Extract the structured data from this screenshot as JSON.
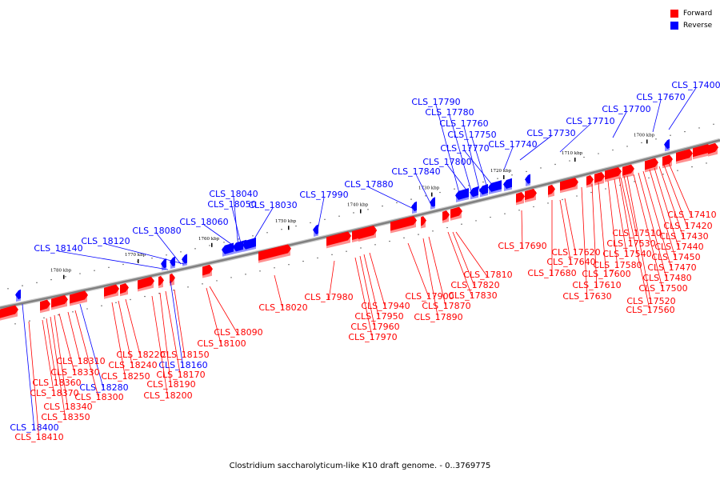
{
  "caption": "Clostridium saccharolyticum-like K10 draft genome. - 0..3769775",
  "legend": [
    {
      "label": "Forward",
      "color": "#ff0000"
    },
    {
      "label": "Reverse",
      "color": "#0000ff"
    }
  ],
  "colors": {
    "forward": "#ff0000",
    "reverse": "#0000ff",
    "backbone": "#808080"
  },
  "scale_ticks": [
    {
      "label": "1700 kbp"
    },
    {
      "label": "1710 kbp"
    },
    {
      "label": "1720 kbp"
    },
    {
      "label": "1730 kbp"
    },
    {
      "label": "1740 kbp"
    },
    {
      "label": "1750 kbp"
    },
    {
      "label": "1760 kbp"
    },
    {
      "label": "1770 kbp"
    },
    {
      "label": "1780 kbp"
    }
  ],
  "genes_forward": [
    "CLS_17410",
    "CLS_17420",
    "CLS_17430",
    "CLS_17440",
    "CLS_17450",
    "CLS_17470",
    "CLS_17480",
    "CLS_17500",
    "CLS_17510",
    "CLS_17520",
    "CLS_17530",
    "CLS_17540",
    "CLS_17560",
    "CLS_17580",
    "CLS_17600",
    "CLS_17610",
    "CLS_17620",
    "CLS_17630",
    "CLS_17640",
    "CLS_17680",
    "CLS_17690",
    "CLS_17810",
    "CLS_17820",
    "CLS_17830",
    "CLS_17870",
    "CLS_17890",
    "CLS_17900",
    "CLS_17940",
    "CLS_17950",
    "CLS_17960",
    "CLS_17970",
    "CLS_17980",
    "CLS_18020",
    "CLS_18090",
    "CLS_18100",
    "CLS_18150",
    "CLS_18170",
    "CLS_18190",
    "CLS_18200",
    "CLS_18220",
    "CLS_18240",
    "CLS_18250",
    "CLS_18300",
    "CLS_18310",
    "CLS_18330",
    "CLS_18340",
    "CLS_18350",
    "CLS_18360",
    "CLS_18370",
    "CLS_18410"
  ],
  "genes_reverse": [
    "CLS_17400",
    "CLS_17670",
    "CLS_17700",
    "CLS_17710",
    "CLS_17730",
    "CLS_17740",
    "CLS_17750",
    "CLS_17760",
    "CLS_17770",
    "CLS_17780",
    "CLS_17790",
    "CLS_17800",
    "CLS_17840",
    "CLS_17880",
    "CLS_17990",
    "CLS_18030",
    "CLS_18040",
    "CLS_18050",
    "CLS_18060",
    "CLS_18080",
    "CLS_18120",
    "CLS_18140",
    "CLS_18160",
    "CLS_18280",
    "CLS_18400"
  ]
}
